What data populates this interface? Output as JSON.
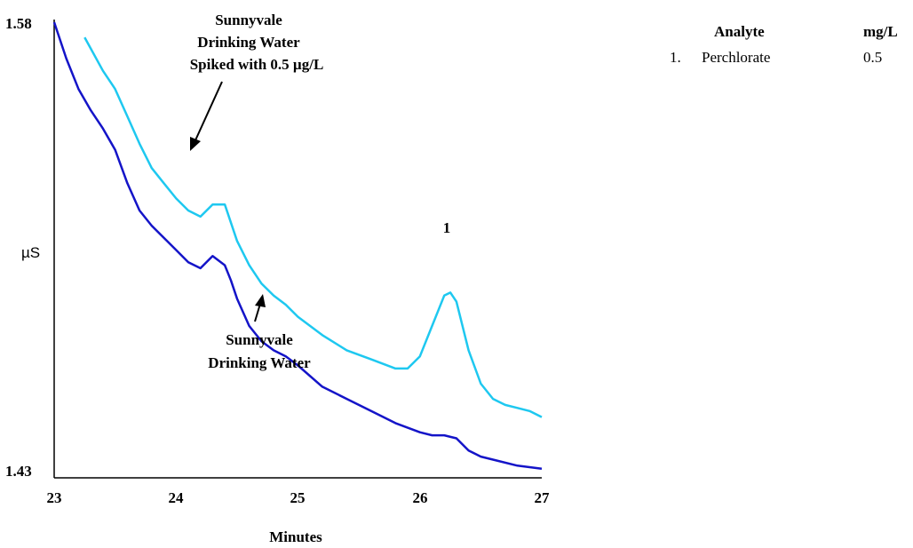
{
  "chart_data": {
    "type": "line",
    "xlabel": "Minutes",
    "ylabel": "µS",
    "xlim": [
      23,
      27
    ],
    "ylim": [
      1.43,
      1.58
    ],
    "x_ticks": [
      "23",
      "24",
      "25",
      "26",
      "27"
    ],
    "y_ticks": [
      "1.58",
      "1.43"
    ],
    "peak_label": "1",
    "series": [
      {
        "name": "Sunnyvale Drinking Water Spiked with 0.5 µg/L",
        "color": "#1ec8f0",
        "x": [
          23.25,
          23.4,
          23.5,
          23.6,
          23.7,
          23.8,
          23.9,
          24.0,
          24.1,
          24.2,
          24.3,
          24.4,
          24.45,
          24.5,
          24.6,
          24.7,
          24.8,
          24.9,
          25.0,
          25.2,
          25.4,
          25.6,
          25.8,
          25.9,
          26.0,
          26.1,
          26.2,
          26.25,
          26.3,
          26.4,
          26.5,
          26.6,
          26.7,
          26.8,
          26.9,
          27.0
        ],
        "values": [
          1.575,
          1.564,
          1.558,
          1.549,
          1.54,
          1.532,
          1.527,
          1.522,
          1.518,
          1.516,
          1.52,
          1.52,
          1.514,
          1.508,
          1.5,
          1.494,
          1.49,
          1.487,
          1.483,
          1.477,
          1.472,
          1.469,
          1.466,
          1.466,
          1.47,
          1.48,
          1.49,
          1.491,
          1.488,
          1.472,
          1.461,
          1.456,
          1.454,
          1.453,
          1.452,
          1.45
        ]
      },
      {
        "name": "Sunnyvale Drinking Water",
        "color": "#1414c8",
        "x": [
          23.0,
          23.1,
          23.2,
          23.3,
          23.4,
          23.5,
          23.6,
          23.7,
          23.8,
          23.9,
          24.0,
          24.1,
          24.2,
          24.3,
          24.4,
          24.45,
          24.5,
          24.6,
          24.7,
          24.8,
          24.9,
          25.0,
          25.2,
          25.4,
          25.6,
          25.8,
          26.0,
          26.1,
          26.2,
          26.3,
          26.4,
          26.5,
          26.6,
          26.8,
          27.0
        ],
        "values": [
          1.58,
          1.568,
          1.558,
          1.551,
          1.545,
          1.538,
          1.527,
          1.518,
          1.513,
          1.509,
          1.505,
          1.501,
          1.499,
          1.503,
          1.5,
          1.495,
          1.489,
          1.48,
          1.475,
          1.472,
          1.47,
          1.467,
          1.46,
          1.456,
          1.452,
          1.448,
          1.445,
          1.444,
          1.444,
          1.443,
          1.439,
          1.437,
          1.436,
          1.434,
          1.433
        ]
      }
    ],
    "annotations": {
      "spiked": [
        "Sunnyvale",
        "Drinking Water",
        "Spiked with 0.5 µg/L"
      ],
      "plain": [
        "Sunnyvale",
        "Drinking Water"
      ]
    }
  },
  "table": {
    "headers": [
      "Analyte",
      "mg/L"
    ],
    "rows": [
      {
        "num": "1.",
        "analyte": "Perchlorate",
        "value": "0.5"
      }
    ]
  }
}
